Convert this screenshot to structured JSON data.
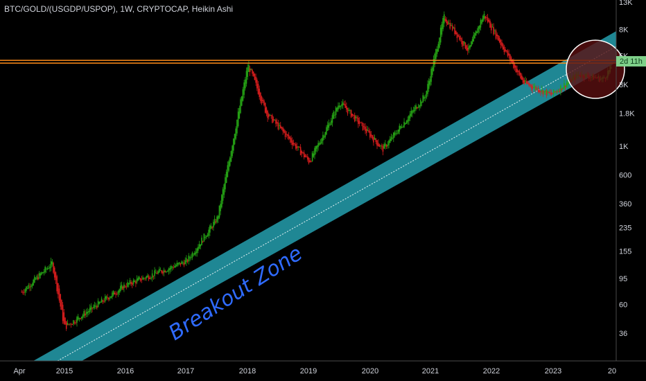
{
  "header": {
    "title": "BTC/GOLD/(USGDP/USPOP), 1W, CRYPTOCAP, Heikin Ashi"
  },
  "chart_data": {
    "type": "candlestick",
    "scale": "log",
    "x_ticks": [
      "Apr",
      "2015",
      "2016",
      "2017",
      "2018",
      "2019",
      "2020",
      "2021",
      "2022",
      "2023",
      "20"
    ],
    "y_ticks": [
      "13K",
      "8K",
      "5K",
      "3K",
      "1.8K",
      "1K",
      "600",
      "360",
      "235",
      "155",
      "95",
      "60",
      "36"
    ],
    "ylim": [
      24,
      13000
    ],
    "price_label": "2d 11h",
    "annotation": "Breakout Zone",
    "resistance_level": 4500,
    "key_points": [
      {
        "date": "2014.3",
        "value": 75
      },
      {
        "date": "2014.8",
        "value": 125
      },
      {
        "date": "2015.0",
        "value": 40
      },
      {
        "date": "2016.0",
        "value": 85
      },
      {
        "date": "2017.0",
        "value": 130
      },
      {
        "date": "2017.5",
        "value": 280
      },
      {
        "date": "2018.0",
        "value": 4300
      },
      {
        "date": "2018.3",
        "value": 1800
      },
      {
        "date": "2019.0",
        "value": 760
      },
      {
        "date": "2019.5",
        "value": 2200
      },
      {
        "date": "2020.2",
        "value": 950
      },
      {
        "date": "2020.9",
        "value": 2500
      },
      {
        "date": "2021.2",
        "value": 10000
      },
      {
        "date": "2021.6",
        "value": 5500
      },
      {
        "date": "2021.85",
        "value": 10500
      },
      {
        "date": "2022.5",
        "value": 3100
      },
      {
        "date": "2022.95",
        "value": 2500
      },
      {
        "date": "2023.4",
        "value": 3600
      },
      {
        "date": "2023.8",
        "value": 3300
      },
      {
        "date": "2023.95",
        "value": 4200
      }
    ],
    "colors": {
      "up": "#26a515",
      "down": "#d81d1d",
      "band": "#1f8794",
      "resistance": "#ff8c1a",
      "circle_fill": "#5a0f10"
    }
  }
}
